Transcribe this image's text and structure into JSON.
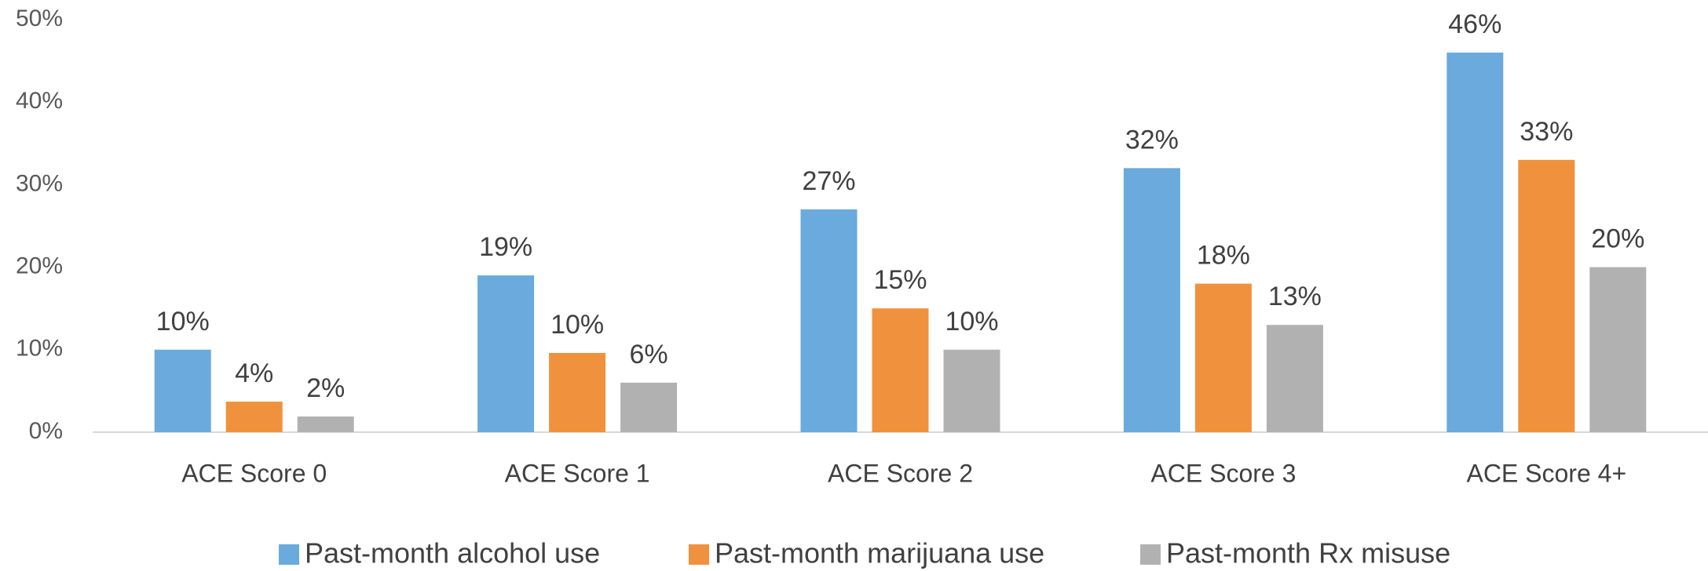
{
  "chart_data": {
    "type": "bar",
    "categories": [
      "ACE Score 0",
      "ACE Score 1",
      "ACE Score 2",
      "ACE Score 3",
      "ACE Score 4+"
    ],
    "series": [
      {
        "name": "Past-month alcohol use",
        "color": "#6aaadc",
        "values": [
          10,
          19,
          27,
          32,
          46
        ],
        "value_labels": [
          "10%",
          "19%",
          "27%",
          "32%",
          "46%"
        ]
      },
      {
        "name": "Past-month marijuana use",
        "color": "#f0913d",
        "values": [
          3.7,
          9.6,
          15,
          18,
          33
        ],
        "value_labels": [
          "4%",
          "10%",
          "15%",
          "18%",
          "33%"
        ]
      },
      {
        "name": "Past-month Rx misuse",
        "color": "#b1b1b1",
        "values": [
          1.9,
          6,
          10,
          13,
          20
        ],
        "value_labels": [
          "2%",
          "6%",
          "10%",
          "13%",
          "20%"
        ]
      }
    ],
    "ylim": [
      0,
      50
    ],
    "yticks": [
      {
        "value": 0,
        "label": "0%"
      },
      {
        "value": 10,
        "label": "10%"
      },
      {
        "value": 20,
        "label": "20%"
      },
      {
        "value": 30,
        "label": "30%"
      },
      {
        "value": 40,
        "label": "40%"
      },
      {
        "value": 50,
        "label": "50%"
      }
    ],
    "grid": false,
    "legend": "bottom"
  }
}
